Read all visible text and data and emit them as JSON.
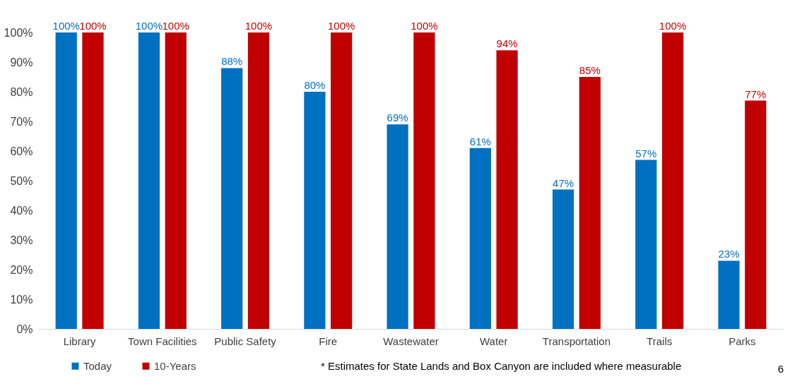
{
  "chart_data": {
    "type": "bar",
    "categories": [
      "Library",
      "Town Facilities",
      "Public Safety",
      "Fire",
      "Wastewater",
      "Water",
      "Transportation",
      "Trails",
      "Parks"
    ],
    "series": [
      {
        "name": "Today",
        "color": "#0070c0",
        "values": [
          100,
          100,
          88,
          80,
          69,
          61,
          47,
          57,
          23
        ],
        "value_labels": [
          "100%",
          "100%",
          "88%",
          "80%",
          "69%",
          "61%",
          "47%",
          "57%",
          "23%"
        ]
      },
      {
        "name": "10-Years",
        "color": "#c00000",
        "values": [
          100,
          100,
          100,
          100,
          100,
          94,
          85,
          100,
          77
        ],
        "value_labels": [
          "100%",
          "100%",
          "100%",
          "100%",
          "100%",
          "94%",
          "85%",
          "100%",
          "77%"
        ]
      }
    ],
    "ylim": [
      0,
      100
    ],
    "yticks": [
      {
        "value": 0,
        "label": "0%"
      },
      {
        "value": 10,
        "label": "10%"
      },
      {
        "value": 20,
        "label": "20%"
      },
      {
        "value": 30,
        "label": "30%"
      },
      {
        "value": 40,
        "label": "40%"
      },
      {
        "value": 50,
        "label": "50%"
      },
      {
        "value": 60,
        "label": "60%"
      },
      {
        "value": 70,
        "label": "70%"
      },
      {
        "value": 80,
        "label": "80%"
      },
      {
        "value": 90,
        "label": "90%"
      },
      {
        "value": 100,
        "label": "100%"
      }
    ],
    "grid": false,
    "legend": "bottom left",
    "annotations": [
      "* Estimates for State Lands and Box Canyon are included where measurable",
      "6"
    ]
  }
}
